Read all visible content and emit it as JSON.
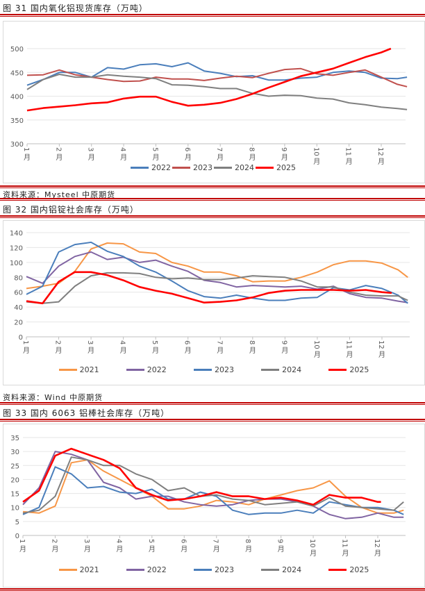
{
  "chart_data": [
    {
      "type": "line",
      "title": "图 31  国内氧化铝现货库存（万吨）",
      "source": "资料来源：Mysteel  中原期货",
      "ylim": [
        300,
        500
      ],
      "yticks": [
        300,
        350,
        400,
        450,
        500
      ],
      "xticks": [
        "1月",
        "2月",
        "3月",
        "4月",
        "5月",
        "6月",
        "7月",
        "8月",
        "9月",
        "10月",
        "11月",
        "12月"
      ],
      "grid": true,
      "legend": "bottom",
      "x": [
        1,
        1.5,
        2,
        2.5,
        3,
        3.5,
        4,
        4.5,
        5,
        5.5,
        6,
        6.5,
        7,
        7.5,
        8,
        8.5,
        9,
        9.5,
        10,
        10.5,
        11,
        11.5,
        12,
        12.5,
        12.8
      ],
      "series": [
        {
          "name": "2022",
          "color": "#4a7ebb",
          "values": [
            423,
            435,
            450,
            450,
            440,
            460,
            457,
            466,
            468,
            462,
            470,
            453,
            448,
            441,
            443,
            434,
            434,
            438,
            440,
            450,
            453,
            450,
            438,
            437,
            440
          ]
        },
        {
          "name": "2023",
          "color": "#c0504d",
          "values": [
            444,
            445,
            455,
            445,
            440,
            435,
            431,
            432,
            440,
            436,
            436,
            433,
            438,
            442,
            439,
            448,
            456,
            458,
            447,
            444,
            450,
            455,
            440,
            425,
            420
          ]
        },
        {
          "name": "2024",
          "color": "#7f7f7f",
          "values": [
            414,
            435,
            446,
            440,
            440,
            445,
            442,
            440,
            437,
            424,
            423,
            420,
            416,
            416,
            406,
            400,
            402,
            401,
            396,
            394,
            386,
            382,
            377,
            374,
            372
          ]
        },
        {
          "name": "2025",
          "color": "#ff0000",
          "x": [
            1,
            1.5,
            2,
            2.5,
            3,
            3.5,
            4,
            4.5,
            5,
            5.5,
            6,
            6.5,
            7,
            7.5,
            8,
            8.5,
            9,
            9.5,
            10,
            10.5,
            11,
            11.5,
            12,
            12.3
          ],
          "values": [
            370,
            375,
            378,
            381,
            385,
            387,
            395,
            399,
            399,
            388,
            380,
            382,
            386,
            394,
            405,
            418,
            430,
            442,
            450,
            458,
            470,
            482,
            492,
            500
          ]
        }
      ]
    },
    {
      "type": "line",
      "title": "图 32  国内铝锭社会库存（万吨）",
      "source": "资料来源：Wind  中原期货",
      "ylim": [
        0,
        140
      ],
      "yticks": [
        0,
        20,
        40,
        60,
        80,
        100,
        120,
        140
      ],
      "xticks": [
        "1月",
        "2月",
        "3月",
        "4月",
        "5月",
        "6月",
        "7月",
        "8月",
        "9月",
        "10月",
        "11月",
        "12月"
      ],
      "grid": true,
      "legend": "bottom",
      "x": [
        1,
        1.5,
        2,
        2.5,
        3,
        3.5,
        4,
        4.5,
        5,
        5.5,
        6,
        6.5,
        7,
        7.5,
        8,
        8.5,
        9,
        9.5,
        10,
        10.5,
        11,
        11.5,
        12,
        12.5,
        12.8
      ],
      "series": [
        {
          "name": "2021",
          "color": "#f79646",
          "values": [
            65,
            68,
            72,
            88,
            118,
            126,
            125,
            114,
            112,
            100,
            95,
            87,
            87,
            82,
            74,
            75,
            75,
            80,
            87,
            97,
            102,
            102,
            99,
            90,
            80
          ]
        },
        {
          "name": "2022",
          "color": "#8064a2",
          "values": [
            81,
            72,
            95,
            108,
            114,
            104,
            107,
            100,
            103,
            95,
            88,
            76,
            73,
            67,
            69,
            68,
            67,
            68,
            64,
            68,
            58,
            53,
            52,
            48,
            46
          ]
        },
        {
          "name": "2023",
          "color": "#4a7ebb",
          "values": [
            57,
            68,
            114,
            124,
            127,
            115,
            108,
            95,
            87,
            75,
            62,
            54,
            52,
            56,
            52,
            49,
            49,
            52,
            53,
            66,
            63,
            69,
            65,
            56,
            45
          ]
        },
        {
          "name": "2024",
          "color": "#7f7f7f",
          "values": [
            47,
            45,
            47,
            68,
            82,
            86,
            86,
            85,
            80,
            78,
            79,
            77,
            77,
            79,
            82,
            81,
            80,
            75,
            67,
            67,
            60,
            56,
            55,
            55,
            49
          ]
        },
        {
          "name": "2025",
          "color": "#ff0000",
          "x": [
            1,
            1.5,
            2,
            2.5,
            3,
            3.5,
            4,
            4.5,
            5,
            5.5,
            6,
            6.5,
            7,
            7.5,
            8,
            8.5,
            9,
            9.5,
            10,
            10.5,
            11,
            11.5,
            12,
            12.3
          ],
          "values": [
            48,
            45,
            74,
            87,
            87,
            83,
            76,
            67,
            62,
            58,
            52,
            46,
            47,
            49,
            53,
            59,
            62,
            63,
            63,
            63,
            62,
            63,
            60,
            59
          ]
        }
      ]
    },
    {
      "type": "line",
      "title": "图 33  国内 6063 铝棒社会库存（万吨）",
      "ylim": [
        0,
        35
      ],
      "yticks": [
        0,
        5,
        10,
        15,
        20,
        25,
        30,
        35
      ],
      "xticks": [
        "1月",
        "2月",
        "3月",
        "4月",
        "5月",
        "6月",
        "7月",
        "8月",
        "9月",
        "10月",
        "11月",
        "12月"
      ],
      "grid": true,
      "legend": "bottom",
      "x": [
        1,
        1.5,
        2,
        2.5,
        3,
        3.5,
        4,
        4.5,
        5,
        5.5,
        6,
        6.5,
        7,
        7.5,
        8,
        8.5,
        9,
        9.5,
        10,
        10.5,
        11,
        11.5,
        12,
        12.5,
        12.8
      ],
      "series": [
        {
          "name": "2021",
          "color": "#f79646",
          "values": [
            8.5,
            8,
            10.5,
            26,
            27,
            23,
            20,
            17,
            14,
            9.5,
            9.5,
            10.5,
            12.5,
            12,
            11,
            13,
            14.5,
            16,
            17,
            19.5,
            14,
            10,
            8,
            8,
            9
          ]
        },
        {
          "name": "2022",
          "color": "#8064a2",
          "values": [
            11,
            17,
            30,
            29,
            27,
            19,
            17,
            13,
            14,
            14,
            12,
            11,
            10.5,
            11,
            12.5,
            13,
            13,
            12,
            10.5,
            7.5,
            6,
            6.5,
            8,
            6.5,
            6.5
          ]
        },
        {
          "name": "2023",
          "color": "#4a7ebb",
          "values": [
            7.5,
            10,
            24.5,
            22,
            17,
            17.5,
            15.5,
            15,
            16.5,
            13,
            13,
            15.5,
            14,
            9,
            7.5,
            8,
            8,
            9,
            8,
            12,
            11,
            10,
            10,
            9,
            7.5
          ]
        },
        {
          "name": "2024",
          "color": "#7f7f7f",
          "values": [
            8,
            9,
            14,
            28,
            27,
            25,
            25,
            22,
            20,
            16,
            17,
            14,
            14.5,
            13,
            12.5,
            11,
            11.5,
            12,
            10.5,
            13.5,
            10.5,
            10,
            9.5,
            9,
            12
          ]
        },
        {
          "name": "2025",
          "color": "#ff0000",
          "x": [
            1,
            1.5,
            2,
            2.5,
            3,
            3.5,
            4,
            4.5,
            5,
            5.5,
            6,
            6.5,
            7,
            7.5,
            8,
            8.5,
            9,
            9.5,
            10,
            10.5,
            11,
            11.5,
            12,
            12.1
          ],
          "values": [
            12,
            16,
            28.5,
            31,
            29,
            27,
            24,
            17,
            14.5,
            12.5,
            13,
            14,
            15.5,
            14,
            14,
            13,
            13.5,
            12.5,
            11,
            14.5,
            13.5,
            13.5,
            12,
            12
          ]
        }
      ]
    }
  ]
}
